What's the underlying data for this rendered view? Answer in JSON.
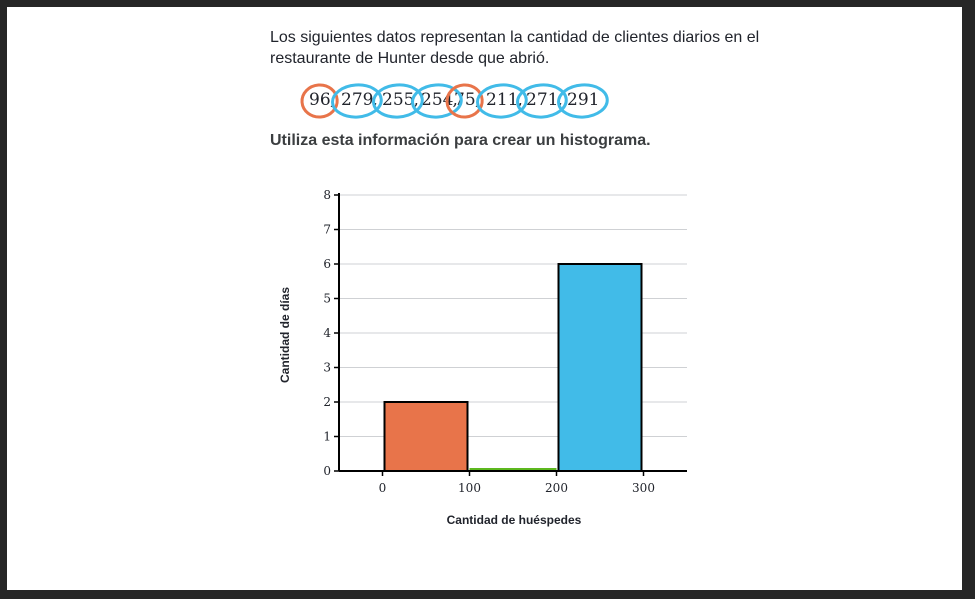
{
  "question": {
    "text": "Los siguientes datos representan la cantidad de clientes diarios en el restaurante de Hunter desde que abrió.",
    "values": [
      "96",
      "279",
      "255",
      "254",
      "75",
      "211",
      "271",
      "291"
    ],
    "separator": ",",
    "marks": [
      {
        "value": "96",
        "color": "#e8744a"
      },
      {
        "value": "279",
        "color": "#41bbe8"
      },
      {
        "value": "255",
        "color": "#41bbe8"
      },
      {
        "value": "254",
        "color": "#41bbe8"
      },
      {
        "value": "75",
        "color": "#e8744a"
      },
      {
        "value": "211",
        "color": "#41bbe8"
      },
      {
        "value": "271",
        "color": "#41bbe8"
      },
      {
        "value": "291",
        "color": "#41bbe8"
      }
    ]
  },
  "instruction": "Utiliza esta información para crear un histograma.",
  "chart_data": {
    "type": "bar",
    "xlabel": "Cantidad de huéspedes",
    "ylabel": "Cantidad de días",
    "xlim": [
      -50,
      350
    ],
    "ylim": [
      0,
      8
    ],
    "xticks": [
      0,
      100,
      200,
      300
    ],
    "yticks": [
      0,
      1,
      2,
      3,
      4,
      5,
      6,
      7,
      8
    ],
    "bins": [
      {
        "from": 0,
        "to": 100,
        "value": 2,
        "color": "#e8744a"
      },
      {
        "from": 100,
        "to": 200,
        "value": 0,
        "color": "#5db81f"
      },
      {
        "from": 200,
        "to": 300,
        "value": 6,
        "color": "#41bbe8"
      }
    ],
    "grid": true
  }
}
